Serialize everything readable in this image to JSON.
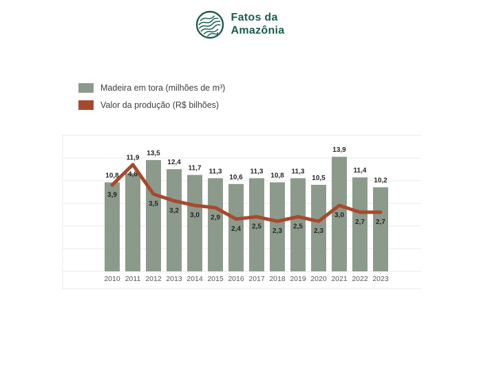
{
  "logo": {
    "line1": "Fatos da",
    "line2": "Amazônia",
    "color": "#175C4C"
  },
  "legend": [
    {
      "label": "Madeira em tora (milhões de m³)",
      "color": "#8C9A8C"
    },
    {
      "label": "Valor da produção (R$ bilhões)",
      "color": "#A8492C"
    }
  ],
  "chart_data": {
    "type": "bar+line",
    "title": "",
    "categories": [
      "2010",
      "2011",
      "2012",
      "2013",
      "2014",
      "2015",
      "2016",
      "2017",
      "2018",
      "2019",
      "2020",
      "2021",
      "2022",
      "2023"
    ],
    "series": [
      {
        "name": "Madeira em tora (milhões de m³)",
        "type": "bar",
        "axis": "left",
        "color": "#8C9A8C",
        "values": [
          10.8,
          11.9,
          13.5,
          12.4,
          11.7,
          11.3,
          10.6,
          11.3,
          10.8,
          11.3,
          10.5,
          13.9,
          11.4,
          10.2
        ],
        "value_labels": [
          "10,8",
          "11,9",
          "13,5",
          "12,4",
          "11,7",
          "11,3",
          "10,6",
          "11,3",
          "10,8",
          "11,3",
          "10,5",
          "13,9",
          "11,4",
          "10,2"
        ]
      },
      {
        "name": "Valor da produção (R$ bilhões)",
        "type": "line",
        "axis": "right",
        "color": "#A8492C",
        "values": [
          3.9,
          4.8,
          3.5,
          3.2,
          3.0,
          2.9,
          2.4,
          2.5,
          2.3,
          2.5,
          2.3,
          3.0,
          2.7,
          2.7
        ],
        "value_labels": [
          "3,9",
          "4,8",
          "3,5",
          "3,2",
          "3,0",
          "2,9",
          "2,4",
          "2,5",
          "2,3",
          "2,5",
          "2,3",
          "3,0",
          "2,7",
          "2,7"
        ]
      }
    ],
    "grid": true,
    "legend_position": "top-left",
    "left_axis_range": [
      0,
      16.5
    ],
    "right_axis_range": [
      0,
      6
    ]
  },
  "colors": {
    "grid": "#E8E8E8",
    "bar_label_text": "#262626",
    "year_label_text": "#555555"
  }
}
